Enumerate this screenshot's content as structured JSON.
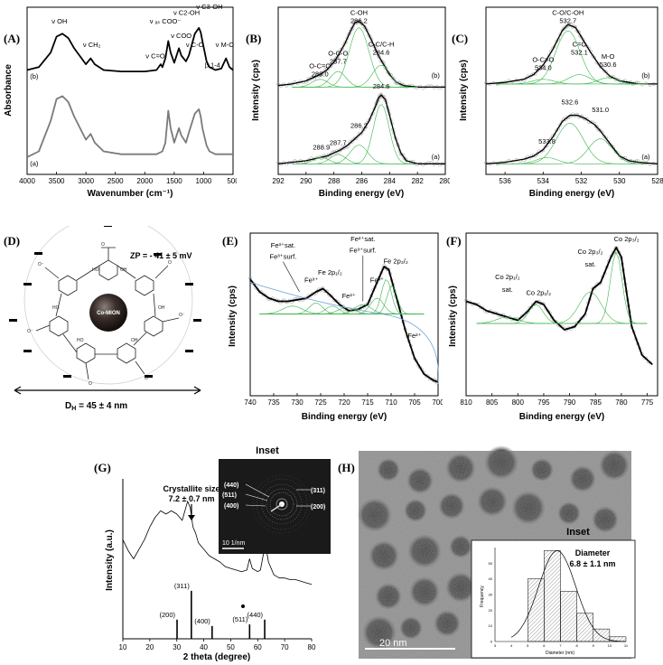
{
  "panel_labels": {
    "A": "(A)",
    "B": "(B)",
    "C": "(C)",
    "D": "(D)",
    "E": "(E)",
    "F": "(F)",
    "G": "(G)",
    "H": "(H)"
  },
  "chart_data": [
    {
      "id": "A",
      "type": "line",
      "xlabel": "Wavenumber (cm⁻¹)",
      "ylabel": "Absorbance",
      "xlim": [
        4000,
        500
      ],
      "ylim": [
        0,
        1
      ],
      "xticks": [
        4000,
        3500,
        3000,
        2500,
        2000,
        1500,
        1000,
        500
      ],
      "series": [
        {
          "name": "(b)",
          "color": "#000000",
          "x": [
            4000,
            3800,
            3600,
            3500,
            3400,
            3300,
            3200,
            3000,
            2920,
            2850,
            2700,
            2400,
            2000,
            1800,
            1730,
            1700,
            1650,
            1600,
            1560,
            1500,
            1420,
            1380,
            1300,
            1250,
            1150,
            1080,
            1050,
            1020,
            950,
            900,
            800,
            700,
            620,
            560,
            500
          ],
          "y": [
            0.7,
            0.72,
            0.82,
            0.93,
            0.95,
            0.92,
            0.85,
            0.74,
            0.78,
            0.74,
            0.7,
            0.69,
            0.69,
            0.7,
            0.74,
            0.72,
            0.78,
            0.9,
            0.82,
            0.75,
            0.85,
            0.8,
            0.76,
            0.8,
            0.95,
            0.99,
            0.96,
            0.9,
            0.76,
            0.72,
            0.7,
            0.71,
            0.78,
            0.72,
            0.7
          ]
        },
        {
          "name": "(a)",
          "color": "#7a7a7a",
          "x": [
            4000,
            3800,
            3600,
            3500,
            3400,
            3300,
            3200,
            3000,
            2920,
            2850,
            2700,
            2400,
            2000,
            1800,
            1700,
            1650,
            1600,
            1560,
            1500,
            1420,
            1380,
            1300,
            1250,
            1150,
            1080,
            1050,
            1020,
            950,
            900,
            800,
            700,
            600,
            500
          ],
          "y": [
            0.1,
            0.14,
            0.35,
            0.5,
            0.52,
            0.48,
            0.38,
            0.22,
            0.26,
            0.2,
            0.14,
            0.12,
            0.12,
            0.12,
            0.14,
            0.2,
            0.42,
            0.3,
            0.2,
            0.3,
            0.25,
            0.2,
            0.27,
            0.4,
            0.43,
            0.38,
            0.3,
            0.18,
            0.14,
            0.12,
            0.12,
            0.12,
            0.12
          ]
        }
      ],
      "annotations": [
        {
          "text": "ν OH",
          "x": 3450,
          "y": 1.02
        },
        {
          "text": "ν CH₂",
          "x": 2900,
          "y": 0.86
        },
        {
          "text": "ν C=O",
          "x": 1820,
          "y": 0.78
        },
        {
          "text": "ν ₐₛ COO⁻",
          "x": 1650,
          "y": 1.02
        },
        {
          "text": "ν C2-OH",
          "x": 1290,
          "y": 1.08
        },
        {
          "text": "ν COO",
          "x": 1380,
          "y": 0.92
        },
        {
          "text": "ν C-O",
          "x": 1150,
          "y": 0.86
        },
        {
          "text": "ν C3-OH",
          "x": 900,
          "y": 1.12
        },
        {
          "text": "β 1-4",
          "x": 850,
          "y": 0.72
        },
        {
          "text": "ν M-O",
          "x": 640,
          "y": 0.86
        }
      ],
      "curve_labels": [
        {
          "text": "(b)",
          "x": 3950,
          "y": 0.64
        },
        {
          "text": "(a)",
          "x": 3950,
          "y": 0.04
        }
      ]
    },
    {
      "id": "B",
      "type": "line",
      "xlabel": "Binding energy (eV)",
      "ylabel": "Intensity (cps)",
      "xlim": [
        292,
        280
      ],
      "ylim": [
        0,
        1
      ],
      "xticks": [
        292,
        290,
        288,
        286,
        284,
        282,
        280
      ],
      "series": [
        {
          "name": "(b)",
          "color": "#000000",
          "x": [
            292,
            291,
            290,
            289.5,
            289,
            288.5,
            288,
            287.7,
            287.2,
            286.8,
            286.5,
            286.2,
            285.8,
            285.3,
            284.8,
            284.4,
            284,
            283.5,
            283,
            282,
            281,
            280
          ],
          "y": [
            0.55,
            0.56,
            0.58,
            0.6,
            0.62,
            0.65,
            0.7,
            0.74,
            0.82,
            0.9,
            0.95,
            0.96,
            0.93,
            0.84,
            0.74,
            0.68,
            0.62,
            0.57,
            0.55,
            0.54,
            0.54,
            0.54
          ]
        },
        {
          "name": "(a)",
          "color": "#000000",
          "x": [
            292,
            291,
            290,
            289,
            288.5,
            288,
            287.5,
            287,
            286.5,
            286,
            285.5,
            285,
            284.8,
            284.6,
            284.3,
            284,
            283.6,
            283.2,
            282.8,
            282,
            281,
            280
          ],
          "y": [
            0.05,
            0.06,
            0.07,
            0.09,
            0.1,
            0.12,
            0.14,
            0.17,
            0.21,
            0.25,
            0.32,
            0.42,
            0.47,
            0.49,
            0.46,
            0.36,
            0.22,
            0.12,
            0.07,
            0.05,
            0.05,
            0.05
          ]
        }
      ],
      "peaks_b": [
        {
          "label": "O-C=O",
          "value": "289.0",
          "x": 289.0
        },
        {
          "label": "O-C-O",
          "value": "287.7",
          "x": 287.7
        },
        {
          "label": "C-OH",
          "value": "286.2",
          "x": 286.2
        },
        {
          "label": "C-C/C-H",
          "value": "284.6",
          "x": 284.6
        }
      ],
      "peaks_a": [
        {
          "value": "288.9",
          "x": 288.9
        },
        {
          "value": "287.7",
          "x": 287.7
        },
        {
          "value": "286.2",
          "x": 286.2
        },
        {
          "value": "284.6",
          "x": 284.6
        }
      ],
      "curve_labels": [
        {
          "text": "(b)",
          "x": 280.4,
          "y": 0.6
        },
        {
          "text": "(a)",
          "x": 280.4,
          "y": 0.08
        }
      ]
    },
    {
      "id": "C",
      "type": "line",
      "xlabel": "Binding energy (eV)",
      "ylabel": "Intensity (cps)",
      "xlim": [
        537,
        528
      ],
      "ylim": [
        0,
        1
      ],
      "xticks": [
        536,
        534,
        532,
        530,
        528
      ],
      "series": [
        {
          "name": "(b)",
          "color": "#000000",
          "x": [
            537,
            536,
            535,
            534.5,
            534,
            533.5,
            533,
            532.7,
            532.3,
            532,
            531.5,
            531,
            530.5,
            530,
            529.5,
            529,
            528
          ],
          "y": [
            0.56,
            0.57,
            0.59,
            0.62,
            0.68,
            0.78,
            0.9,
            0.94,
            0.92,
            0.86,
            0.76,
            0.67,
            0.61,
            0.58,
            0.57,
            0.56,
            0.56
          ]
        },
        {
          "name": "(a)",
          "color": "#000000",
          "x": [
            537,
            536,
            535,
            534.5,
            534,
            533.5,
            533,
            532.6,
            532.2,
            531.8,
            531.3,
            531,
            530.5,
            530,
            529.5,
            529,
            528
          ],
          "y": [
            0.05,
            0.06,
            0.08,
            0.1,
            0.14,
            0.22,
            0.32,
            0.36,
            0.36,
            0.34,
            0.3,
            0.26,
            0.18,
            0.1,
            0.07,
            0.06,
            0.05
          ]
        }
      ],
      "peaks_b": [
        {
          "label": "O-C=O",
          "value": "534.0",
          "x": 534.0
        },
        {
          "label": "C-O/C-OH",
          "value": "532.7",
          "x": 532.7
        },
        {
          "label": "C=O",
          "value": "532.1",
          "x": 532.1
        },
        {
          "label": "M-O",
          "value": "530.6",
          "x": 530.6
        }
      ],
      "peaks_a": [
        {
          "value": "533.8",
          "x": 533.8
        },
        {
          "value": "532.6",
          "x": 532.6
        },
        {
          "value": "531.0",
          "x": 531.0
        }
      ],
      "curve_labels": [
        {
          "text": "(b)",
          "x": 528.4,
          "y": 0.6
        },
        {
          "text": "(a)",
          "x": 528.4,
          "y": 0.08
        }
      ]
    },
    {
      "id": "E",
      "type": "line",
      "xlabel": "Binding energy (eV)",
      "ylabel": "Intensity (cps)",
      "xlim": [
        740,
        700
      ],
      "ylim": [
        0,
        1
      ],
      "xticks": [
        740,
        735,
        730,
        725,
        720,
        715,
        710,
        705,
        700
      ],
      "series": [
        {
          "name": "fit",
          "color": "#000000",
          "x": [
            740,
            738,
            736,
            734,
            732,
            730,
            728,
            726,
            724.5,
            723,
            721,
            719,
            717,
            715,
            713,
            711.5,
            710.5,
            709,
            707,
            705,
            703,
            701,
            700
          ],
          "y": [
            0.72,
            0.64,
            0.6,
            0.58,
            0.58,
            0.59,
            0.6,
            0.64,
            0.66,
            0.62,
            0.56,
            0.52,
            0.53,
            0.56,
            0.7,
            0.8,
            0.78,
            0.62,
            0.4,
            0.22,
            0.12,
            0.08,
            0.07
          ]
        }
      ],
      "annotations": [
        {
          "text": "Fe³⁺sat.",
          "x": 733
        },
        {
          "text": "Fe³⁺surf.",
          "x": 733
        },
        {
          "text": "Fe³⁺",
          "x": 727
        },
        {
          "text": "Fe 2p₁/₂",
          "x": 723
        },
        {
          "text": "Fe²⁺",
          "x": 719
        },
        {
          "text": "Fe²⁺sat.",
          "x": 716
        },
        {
          "text": "Fe³⁺surf.",
          "x": 716
        },
        {
          "text": "Fe³⁺",
          "x": 713
        },
        {
          "text": "Fe 2p₃/₂",
          "x": 709
        },
        {
          "text": "Fe²⁺",
          "x": 705
        }
      ]
    },
    {
      "id": "F",
      "type": "line",
      "xlabel": "Binding energy (eV)",
      "ylabel": "Intensity (cps)",
      "xlim": [
        810,
        773
      ],
      "ylim": [
        0,
        1
      ],
      "xticks": [
        810,
        805,
        800,
        795,
        790,
        785,
        780,
        775
      ],
      "series": [
        {
          "name": "fit",
          "color": "#000000",
          "x": [
            810,
            808,
            806,
            804,
            802,
            800,
            798,
            796.5,
            795,
            793,
            791,
            789,
            787,
            785.5,
            784,
            782,
            781,
            780,
            779,
            778,
            776,
            774
          ],
          "y": [
            0.58,
            0.56,
            0.52,
            0.5,
            0.48,
            0.46,
            0.52,
            0.58,
            0.56,
            0.46,
            0.4,
            0.42,
            0.5,
            0.66,
            0.7,
            0.86,
            0.92,
            0.86,
            0.64,
            0.42,
            0.24,
            0.18
          ]
        }
      ],
      "annotations": [
        {
          "text": "Co 2p₁/₂",
          "x": 802
        },
        {
          "text": "sat.",
          "x": 802
        },
        {
          "text": "Co 2p₁/₂",
          "x": 796
        },
        {
          "text": "Co 2p₃/₂",
          "x": 786
        },
        {
          "text": "sat.",
          "x": 786
        },
        {
          "text": "Co 2p₃/₂",
          "x": 779
        }
      ]
    },
    {
      "id": "G",
      "type": "line",
      "xlabel": "2 theta (degree)",
      "ylabel": "Intensity (a.u.)",
      "xlim": [
        10,
        80
      ],
      "ylim": [
        0,
        1
      ],
      "xticks": [
        10,
        20,
        30,
        40,
        50,
        60,
        70,
        80
      ],
      "series": [
        {
          "name": "XRD",
          "color": "#000000",
          "x": [
            10,
            12,
            14,
            16,
            18,
            20,
            22,
            24,
            26,
            28,
            30,
            32,
            33,
            34,
            35,
            36,
            37,
            38,
            40,
            42,
            44,
            46,
            48,
            50,
            52,
            54,
            56,
            57,
            58,
            60,
            61,
            62,
            63,
            64,
            66,
            68,
            70,
            72,
            74,
            76,
            78,
            80
          ],
          "y": [
            0.62,
            0.55,
            0.5,
            0.56,
            0.62,
            0.7,
            0.76,
            0.8,
            0.78,
            0.8,
            0.78,
            0.74,
            0.8,
            0.86,
            0.82,
            0.7,
            0.66,
            0.6,
            0.56,
            0.52,
            0.5,
            0.48,
            0.45,
            0.44,
            0.43,
            0.42,
            0.43,
            0.5,
            0.44,
            0.42,
            0.43,
            0.52,
            0.58,
            0.48,
            0.4,
            0.38,
            0.38,
            0.37,
            0.37,
            0.36,
            0.35,
            0.34
          ]
        }
      ],
      "reference_lines": [
        {
          "label": "(200)",
          "x": 30.1,
          "h": 0.12
        },
        {
          "label": "(311)",
          "x": 35.4,
          "h": 0.3
        },
        {
          "label": "(400)",
          "x": 43.1,
          "h": 0.08
        },
        {
          "label": "(511)",
          "x": 57.0,
          "h": 0.09
        },
        {
          "label": "(440)",
          "x": 62.6,
          "h": 0.12
        }
      ],
      "annotation": {
        "line1": "Crystallite size",
        "line2": "7.2 ± 0.7 nm"
      },
      "inset_title": "Inset",
      "inset_rings": [
        "(440)",
        "(511)",
        "(400)",
        "(311)",
        "(200)"
      ],
      "inset_scale": "10 1/nm"
    },
    {
      "id": "H_inset",
      "type": "bar",
      "title": "Inset",
      "xlabel": "Diameter (nm)",
      "ylabel": "Frequency",
      "legend_line1": "Diameter",
      "legend_line2": "6.8 ± 1.1 nm",
      "xlim": [
        3,
        11
      ],
      "ylim": [
        0,
        60
      ],
      "xticks": [
        3,
        4,
        5,
        6,
        7,
        8,
        9,
        10,
        11
      ],
      "yticks": [
        0,
        10,
        20,
        30,
        40,
        50
      ],
      "bins": [
        5,
        6,
        7,
        8,
        9,
        10
      ],
      "values": [
        40,
        58,
        32,
        18,
        8,
        3
      ]
    }
  ],
  "panel_D": {
    "zeta": "ZP = - 41 ± 5 mV",
    "core_label": "Co-MION",
    "diameter": "D",
    "diameter_sub": "H",
    "diameter_value": " = 45 ± 4 nm"
  },
  "panel_H": {
    "scale_bar": "20 nm"
  }
}
